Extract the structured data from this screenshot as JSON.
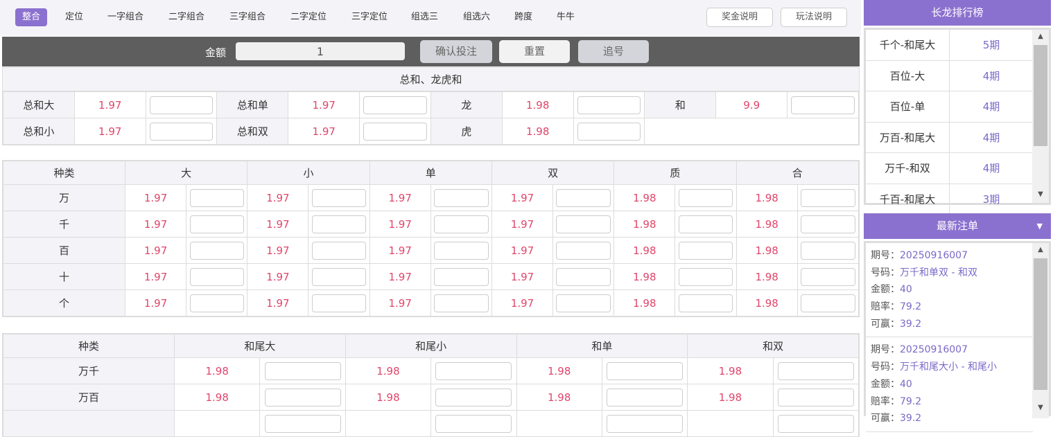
{
  "nav": {
    "tabs": [
      "整合",
      "定位",
      "一字组合",
      "二字组合",
      "三字组合",
      "二字定位",
      "三字定位",
      "组选三",
      "组选六",
      "跨度",
      "牛牛"
    ],
    "active": 0,
    "prize_btn": "奖金说明",
    "rules_btn": "玩法说明"
  },
  "bet_bar": {
    "amount_label": "金额",
    "amount_value": "1",
    "confirm": "确认投注",
    "reset": "重置",
    "chase": "追号"
  },
  "sum_section": {
    "title": "总和、龙虎和",
    "rows": [
      [
        {
          "label": "总和大",
          "odds": "1.97"
        },
        {
          "label": "总和单",
          "odds": "1.97"
        },
        {
          "label": "龙",
          "odds": "1.98"
        },
        {
          "label": "和",
          "odds": "9.9"
        }
      ],
      [
        {
          "label": "总和小",
          "odds": "1.97"
        },
        {
          "label": "总和双",
          "odds": "1.97"
        },
        {
          "label": "虎",
          "odds": "1.98"
        }
      ]
    ]
  },
  "position_table": {
    "headers": [
      "种类",
      "大",
      "小",
      "单",
      "双",
      "质",
      "合"
    ],
    "rows": [
      {
        "label": "万",
        "odds": [
          "1.97",
          "1.97",
          "1.97",
          "1.97",
          "1.98",
          "1.98"
        ]
      },
      {
        "label": "千",
        "odds": [
          "1.97",
          "1.97",
          "1.97",
          "1.97",
          "1.98",
          "1.98"
        ]
      },
      {
        "label": "百",
        "odds": [
          "1.97",
          "1.97",
          "1.97",
          "1.97",
          "1.98",
          "1.98"
        ]
      },
      {
        "label": "十",
        "odds": [
          "1.97",
          "1.97",
          "1.97",
          "1.97",
          "1.98",
          "1.98"
        ]
      },
      {
        "label": "个",
        "odds": [
          "1.97",
          "1.97",
          "1.97",
          "1.97",
          "1.98",
          "1.98"
        ]
      }
    ]
  },
  "pair_table": {
    "headers": [
      "种类",
      "和尾大",
      "和尾小",
      "和单",
      "和双"
    ],
    "rows": [
      {
        "label": "万千",
        "odds": [
          "1.98",
          "1.98",
          "1.98",
          "1.98"
        ]
      },
      {
        "label": "万百",
        "odds": [
          "1.98",
          "1.98",
          "1.98",
          "1.98"
        ]
      },
      {
        "label": "",
        "odds": [
          "",
          "",
          "",
          ""
        ]
      }
    ]
  },
  "ranking": {
    "title": "长龙排行榜",
    "items": [
      {
        "name": "千个-和尾大",
        "count": "5期"
      },
      {
        "name": "百位-大",
        "count": "4期"
      },
      {
        "name": "百位-单",
        "count": "4期"
      },
      {
        "name": "万百-和尾大",
        "count": "4期"
      },
      {
        "name": "万千-和双",
        "count": "4期"
      },
      {
        "name": "千百-和尾大",
        "count": "3期"
      }
    ]
  },
  "latest_orders": {
    "title": "最新注单",
    "labels": {
      "period": "期号：",
      "number": "号码：",
      "amount": "金额：",
      "odds": "赔率：",
      "win": "可赢："
    },
    "items": [
      {
        "period": "20250916007",
        "number": "万千和单双 - 和双",
        "amount": "40",
        "odds": "79.2",
        "win": "39.2"
      },
      {
        "period": "20250916007",
        "number": "万千和尾大小 - 和尾小",
        "amount": "40",
        "odds": "79.2",
        "win": "39.2"
      }
    ]
  },
  "colors": {
    "accent": "#8b71cf",
    "odds": "#e0456a",
    "bar": "#5e5e5e"
  }
}
